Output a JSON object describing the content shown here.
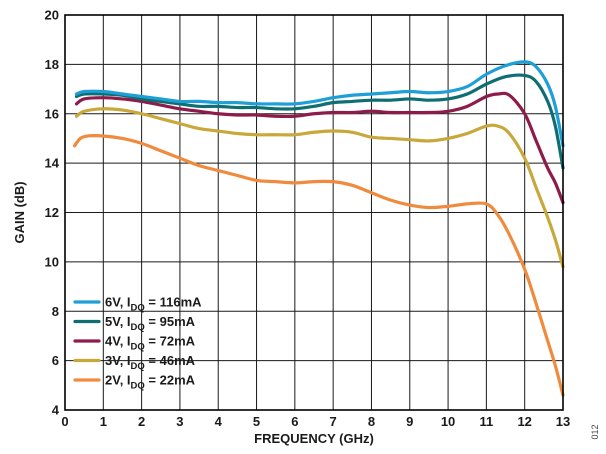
{
  "chart_data": {
    "type": "line",
    "title": "",
    "xlabel": "FREQUENCY (GHz)",
    "ylabel": "GAIN (dB)",
    "xlim": [
      0,
      13
    ],
    "ylim": [
      4,
      20
    ],
    "xticks": [
      0,
      1,
      2,
      3,
      4,
      5,
      6,
      7,
      8,
      9,
      10,
      11,
      12,
      13
    ],
    "yticks": [
      4,
      6,
      8,
      10,
      12,
      14,
      16,
      18,
      20
    ],
    "grid": true,
    "legend_position": "bottom-left",
    "figure_id": "012",
    "series": [
      {
        "label_main": "6V, I",
        "label_sub": "DQ",
        "label_rest": " = 116mA",
        "color": "#1e9fd8",
        "x": [
          0.3,
          0.5,
          1,
          1.5,
          2,
          2.5,
          3,
          3.5,
          4,
          4.5,
          5,
          5.5,
          6,
          6.5,
          7,
          7.5,
          8,
          8.5,
          9,
          9.5,
          10,
          10.5,
          11,
          11.5,
          12,
          12.3,
          12.6,
          12.8,
          13
        ],
        "y": [
          16.8,
          16.9,
          16.9,
          16.8,
          16.7,
          16.6,
          16.5,
          16.5,
          16.45,
          16.45,
          16.4,
          16.4,
          16.4,
          16.5,
          16.65,
          16.75,
          16.8,
          16.85,
          16.9,
          16.85,
          16.9,
          17.1,
          17.6,
          17.95,
          18.1,
          17.9,
          17.2,
          16.3,
          14.7
        ]
      },
      {
        "label_main": "5V, I",
        "label_sub": "DQ",
        "label_rest": " = 95mA",
        "color": "#0e6e72",
        "x": [
          0.3,
          0.5,
          1,
          1.5,
          2,
          2.5,
          3,
          3.5,
          4,
          4.5,
          5,
          5.5,
          6,
          6.5,
          7,
          7.5,
          8,
          8.5,
          9,
          9.5,
          10,
          10.5,
          11,
          11.5,
          12,
          12.3,
          12.6,
          12.8,
          13
        ],
        "y": [
          16.7,
          16.8,
          16.8,
          16.75,
          16.6,
          16.5,
          16.4,
          16.3,
          16.3,
          16.25,
          16.25,
          16.2,
          16.2,
          16.3,
          16.45,
          16.5,
          16.55,
          16.55,
          16.6,
          16.55,
          16.6,
          16.8,
          17.2,
          17.5,
          17.55,
          17.3,
          16.5,
          15.5,
          13.8
        ]
      },
      {
        "label_main": "4V, I",
        "label_sub": "DQ",
        "label_rest": " = 72mA",
        "color": "#8e1c4a",
        "x": [
          0.3,
          0.5,
          1,
          1.5,
          2,
          2.5,
          3,
          3.5,
          4,
          4.5,
          5,
          5.5,
          6,
          6.5,
          7,
          7.5,
          8,
          8.5,
          9,
          9.5,
          10,
          10.5,
          11,
          11.3,
          11.6,
          12,
          12.3,
          12.6,
          12.8,
          13
        ],
        "y": [
          16.4,
          16.6,
          16.65,
          16.6,
          16.5,
          16.35,
          16.2,
          16.1,
          16.0,
          15.95,
          15.95,
          15.9,
          15.9,
          16.0,
          16.05,
          16.05,
          16.1,
          16.05,
          16.05,
          16.05,
          16.1,
          16.3,
          16.7,
          16.8,
          16.75,
          16.0,
          14.9,
          13.8,
          13.2,
          12.4
        ]
      },
      {
        "label_main": "3V, I",
        "label_sub": "DQ",
        "label_rest": " = 46mA",
        "color": "#c8a83a",
        "x": [
          0.3,
          0.5,
          1,
          1.5,
          2,
          2.5,
          3,
          3.5,
          4,
          4.5,
          5,
          5.5,
          6,
          6.5,
          7,
          7.5,
          8,
          8.5,
          9,
          9.5,
          10,
          10.5,
          11,
          11.3,
          11.6,
          12,
          12.3,
          12.6,
          12.8,
          13
        ],
        "y": [
          15.9,
          16.1,
          16.2,
          16.15,
          16.0,
          15.8,
          15.6,
          15.4,
          15.3,
          15.2,
          15.15,
          15.15,
          15.15,
          15.25,
          15.3,
          15.25,
          15.05,
          15.0,
          14.95,
          14.9,
          15.0,
          15.2,
          15.5,
          15.5,
          15.2,
          14.2,
          13.0,
          11.8,
          10.9,
          9.8
        ]
      },
      {
        "label_main": "2V, I",
        "label_sub": "DQ",
        "label_rest": " = 22mA",
        "color": "#f08a3c",
        "x": [
          0.25,
          0.4,
          0.6,
          1,
          1.5,
          2,
          2.5,
          3,
          3.5,
          4,
          4.5,
          5,
          5.5,
          6,
          6.5,
          7,
          7.5,
          8,
          8.5,
          9,
          9.5,
          10,
          10.5,
          11,
          11.3,
          11.6,
          12,
          12.3,
          12.6,
          12.8,
          13
        ],
        "y": [
          14.7,
          15.0,
          15.1,
          15.1,
          15.0,
          14.8,
          14.5,
          14.2,
          13.9,
          13.7,
          13.5,
          13.3,
          13.25,
          13.2,
          13.25,
          13.25,
          13.1,
          12.8,
          12.5,
          12.3,
          12.2,
          12.25,
          12.35,
          12.35,
          11.9,
          11.1,
          9.7,
          8.3,
          6.8,
          5.8,
          4.6
        ]
      }
    ]
  }
}
